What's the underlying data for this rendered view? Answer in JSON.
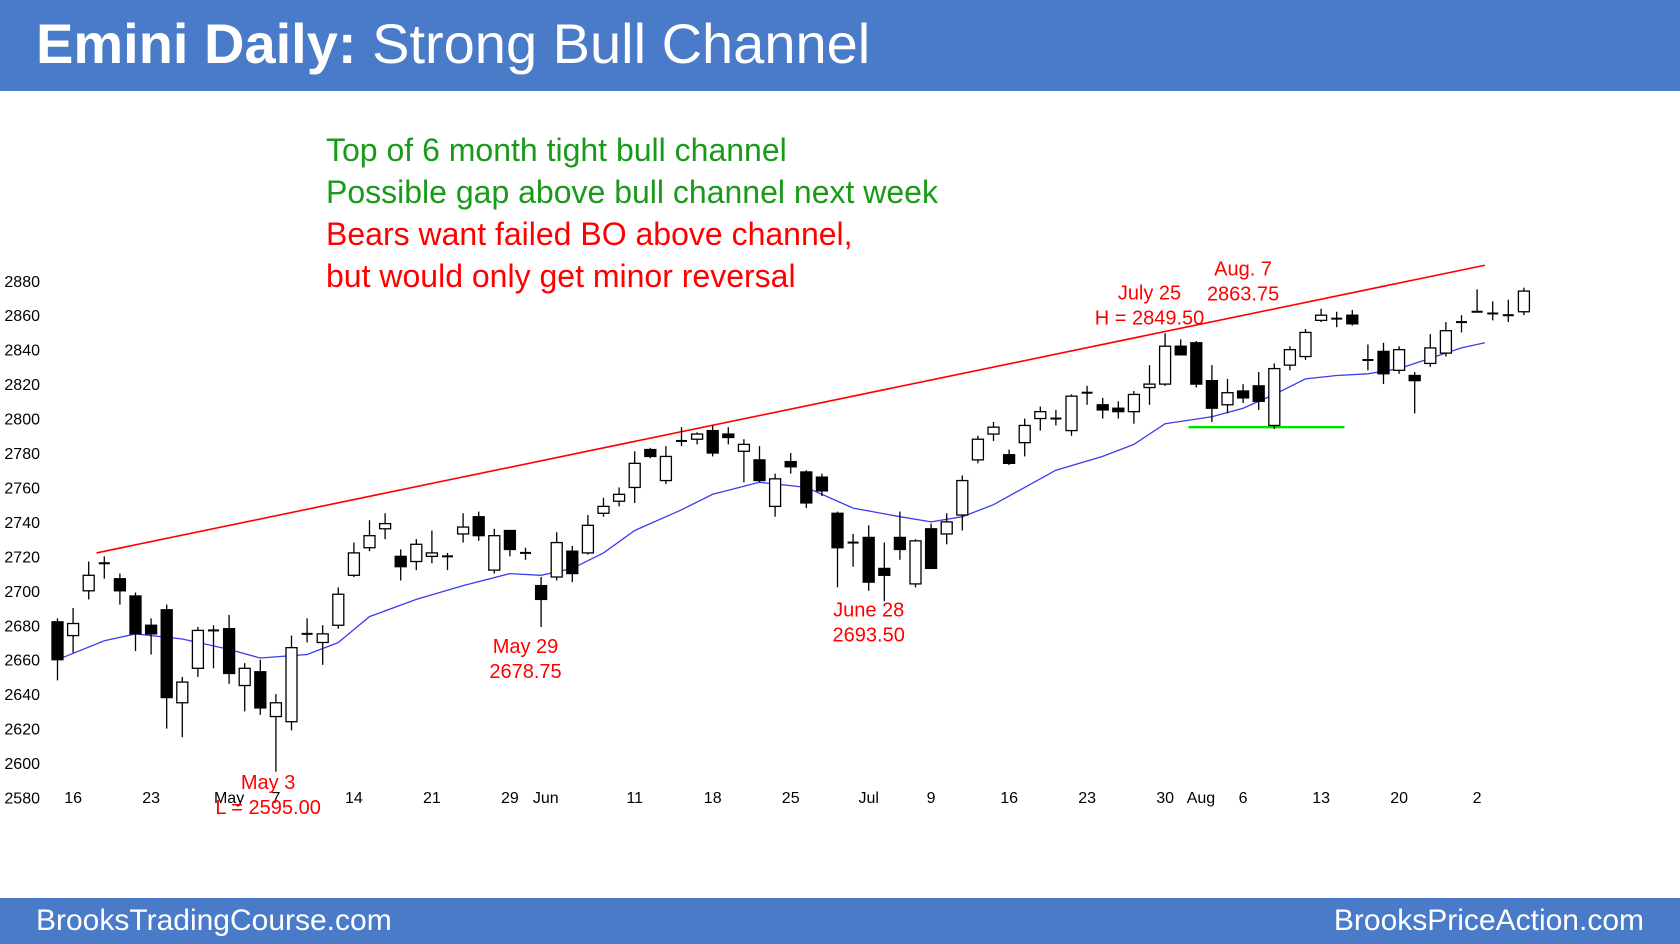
{
  "header": {
    "title_bold": "Emini Daily:",
    "title_rest": "Strong Bull Channel"
  },
  "footer": {
    "left_text": "BrooksTradingCourse.com",
    "right_text": "BrooksPriceAction.com"
  },
  "colors": {
    "header_bg": "#4a7bc8",
    "green_text": "#1a9a1a",
    "red_text": "#ff0000",
    "trendline": "#ff0000",
    "moving_average": "#3c3cf0",
    "support_line": "#00e000",
    "bull_body": "#ffffff",
    "bear_body": "#000000"
  },
  "chart_data": {
    "type": "candlestick",
    "title": "Emini Daily: Strong Bull Channel",
    "y_ticks": [
      2580,
      2600,
      2620,
      2640,
      2660,
      2680,
      2700,
      2720,
      2740,
      2760,
      2780,
      2800,
      2820,
      2840,
      2860,
      2880
    ],
    "ylim": [
      2568,
      2900
    ],
    "x_tick_labels": [
      {
        "bar": 1,
        "label": "16"
      },
      {
        "bar": 6,
        "label": "23"
      },
      {
        "bar": 11,
        "label": "May"
      },
      {
        "bar": 14,
        "label": "7"
      },
      {
        "bar": 19,
        "label": "14"
      },
      {
        "bar": 24,
        "label": "21"
      },
      {
        "bar": 29,
        "label": "29"
      },
      {
        "bar": 31.3,
        "label": "Jun"
      },
      {
        "bar": 37,
        "label": "11"
      },
      {
        "bar": 42,
        "label": "18"
      },
      {
        "bar": 47,
        "label": "25"
      },
      {
        "bar": 52,
        "label": "Jul"
      },
      {
        "bar": 56,
        "label": "9"
      },
      {
        "bar": 61,
        "label": "16"
      },
      {
        "bar": 66,
        "label": "23"
      },
      {
        "bar": 71,
        "label": "30"
      },
      {
        "bar": 73.3,
        "label": "Aug"
      },
      {
        "bar": 76,
        "label": "6"
      },
      {
        "bar": 81,
        "label": "13"
      },
      {
        "bar": 86,
        "label": "20"
      },
      {
        "bar": 91,
        "label": "2"
      }
    ],
    "candles": [
      {
        "open": 2682,
        "high": 2684,
        "low": 2648,
        "close": 2660
      },
      {
        "open": 2674,
        "high": 2690,
        "low": 2664,
        "close": 2681
      },
      {
        "open": 2700,
        "high": 2717,
        "low": 2695,
        "close": 2709
      },
      {
        "open": 2715,
        "high": 2720,
        "low": 2707,
        "close": 2716
      },
      {
        "open": 2707,
        "high": 2710,
        "low": 2692,
        "close": 2700
      },
      {
        "open": 2697,
        "high": 2699,
        "low": 2665,
        "close": 2675
      },
      {
        "open": 2680,
        "high": 2684,
        "low": 2663,
        "close": 2675
      },
      {
        "open": 2689,
        "high": 2692,
        "low": 2620,
        "close": 2638
      },
      {
        "open": 2635,
        "high": 2650,
        "low": 2615,
        "close": 2647
      },
      {
        "open": 2655,
        "high": 2679,
        "low": 2650,
        "close": 2677
      },
      {
        "open": 2677,
        "high": 2680,
        "low": 2655,
        "close": 2677
      },
      {
        "open": 2678,
        "high": 2686,
        "low": 2646,
        "close": 2652
      },
      {
        "open": 2645,
        "high": 2658,
        "low": 2630,
        "close": 2655
      },
      {
        "open": 2653,
        "high": 2660,
        "low": 2628,
        "close": 2632
      },
      {
        "open": 2627,
        "high": 2640,
        "low": 2595,
        "close": 2635
      },
      {
        "open": 2624,
        "high": 2674,
        "low": 2619,
        "close": 2667
      },
      {
        "open": 2675,
        "high": 2684,
        "low": 2670,
        "close": 2675
      },
      {
        "open": 2670,
        "high": 2680,
        "low": 2657,
        "close": 2675
      },
      {
        "open": 2680,
        "high": 2702,
        "low": 2678,
        "close": 2698
      },
      {
        "open": 2709,
        "high": 2728,
        "low": 2708,
        "close": 2722
      },
      {
        "open": 2725,
        "high": 2741,
        "low": 2723,
        "close": 2732
      },
      {
        "open": 2736,
        "high": 2745,
        "low": 2730,
        "close": 2739
      },
      {
        "open": 2720,
        "high": 2724,
        "low": 2706,
        "close": 2714
      },
      {
        "open": 2717,
        "high": 2730,
        "low": 2712,
        "close": 2727
      },
      {
        "open": 2720,
        "high": 2735,
        "low": 2716,
        "close": 2722
      },
      {
        "open": 2720,
        "high": 2722,
        "low": 2712,
        "close": 2719
      },
      {
        "open": 2733,
        "high": 2745,
        "low": 2728,
        "close": 2737
      },
      {
        "open": 2743,
        "high": 2746,
        "low": 2729,
        "close": 2732
      },
      {
        "open": 2712,
        "high": 2736,
        "low": 2710,
        "close": 2732
      },
      {
        "open": 2735,
        "high": 2735,
        "low": 2720,
        "close": 2724
      },
      {
        "open": 2722,
        "high": 2725,
        "low": 2718,
        "close": 2722
      },
      {
        "open": 2703,
        "high": 2708,
        "low": 2679,
        "close": 2695
      },
      {
        "open": 2708,
        "high": 2734,
        "low": 2706,
        "close": 2728
      },
      {
        "open": 2723,
        "high": 2726,
        "low": 2705,
        "close": 2710
      },
      {
        "open": 2722,
        "high": 2744,
        "low": 2721,
        "close": 2738
      },
      {
        "open": 2745,
        "high": 2754,
        "low": 2743,
        "close": 2749
      },
      {
        "open": 2752,
        "high": 2760,
        "low": 2749,
        "close": 2756
      },
      {
        "open": 2760,
        "high": 2781,
        "low": 2751,
        "close": 2774
      },
      {
        "open": 2782,
        "high": 2783,
        "low": 2777,
        "close": 2778
      },
      {
        "open": 2764,
        "high": 2784,
        "low": 2762,
        "close": 2778
      },
      {
        "open": 2786,
        "high": 2795,
        "low": 2784,
        "close": 2787
      },
      {
        "open": 2788,
        "high": 2792,
        "low": 2785,
        "close": 2791
      },
      {
        "open": 2793,
        "high": 2796,
        "low": 2778,
        "close": 2780
      },
      {
        "open": 2791,
        "high": 2795,
        "low": 2785,
        "close": 2789
      },
      {
        "open": 2781,
        "high": 2788,
        "low": 2763,
        "close": 2785
      },
      {
        "open": 2776,
        "high": 2784,
        "low": 2763,
        "close": 2764
      },
      {
        "open": 2749,
        "high": 2768,
        "low": 2743,
        "close": 2765
      },
      {
        "open": 2775,
        "high": 2780,
        "low": 2768,
        "close": 2772
      },
      {
        "open": 2769,
        "high": 2770,
        "low": 2748,
        "close": 2751
      },
      {
        "open": 2766,
        "high": 2768,
        "low": 2755,
        "close": 2758
      },
      {
        "open": 2745,
        "high": 2746,
        "low": 2702,
        "close": 2725
      },
      {
        "open": 2728,
        "high": 2733,
        "low": 2714,
        "close": 2728
      },
      {
        "open": 2731,
        "high": 2738,
        "low": 2700,
        "close": 2705
      },
      {
        "open": 2713,
        "high": 2728,
        "low": 2694,
        "close": 2709
      },
      {
        "open": 2731,
        "high": 2746,
        "low": 2718,
        "close": 2724
      },
      {
        "open": 2704,
        "high": 2730,
        "low": 2702,
        "close": 2729
      },
      {
        "open": 2736,
        "high": 2739,
        "low": 2713,
        "close": 2713
      },
      {
        "open": 2733,
        "high": 2745,
        "low": 2727,
        "close": 2740
      },
      {
        "open": 2744,
        "high": 2767,
        "low": 2735,
        "close": 2764
      },
      {
        "open": 2776,
        "high": 2790,
        "low": 2774,
        "close": 2788
      },
      {
        "open": 2791,
        "high": 2798,
        "low": 2787,
        "close": 2795
      },
      {
        "open": 2779,
        "high": 2782,
        "low": 2773,
        "close": 2774
      },
      {
        "open": 2786,
        "high": 2800,
        "low": 2778,
        "close": 2796
      },
      {
        "open": 2800,
        "high": 2807,
        "low": 2793,
        "close": 2804
      },
      {
        "open": 2800,
        "high": 2805,
        "low": 2796,
        "close": 2799
      },
      {
        "open": 2793,
        "high": 2814,
        "low": 2790,
        "close": 2813
      },
      {
        "open": 2814,
        "high": 2819,
        "low": 2808,
        "close": 2815
      },
      {
        "open": 2808,
        "high": 2812,
        "low": 2800,
        "close": 2805
      },
      {
        "open": 2806,
        "high": 2810,
        "low": 2800,
        "close": 2804
      },
      {
        "open": 2804,
        "high": 2816,
        "low": 2797,
        "close": 2814
      },
      {
        "open": 2818,
        "high": 2831,
        "low": 2808,
        "close": 2820
      },
      {
        "open": 2820,
        "high": 2849.5,
        "low": 2819,
        "close": 2842
      },
      {
        "open": 2842,
        "high": 2846,
        "low": 2838,
        "close": 2837
      },
      {
        "open": 2844,
        "high": 2845,
        "low": 2818,
        "close": 2820
      },
      {
        "open": 2822,
        "high": 2831,
        "low": 2798,
        "close": 2806
      },
      {
        "open": 2808,
        "high": 2823,
        "low": 2803,
        "close": 2815
      },
      {
        "open": 2816,
        "high": 2820,
        "low": 2809,
        "close": 2812
      },
      {
        "open": 2819,
        "high": 2827,
        "low": 2805,
        "close": 2810
      },
      {
        "open": 2796,
        "high": 2832,
        "low": 2794,
        "close": 2829
      },
      {
        "open": 2831,
        "high": 2842,
        "low": 2828,
        "close": 2840
      },
      {
        "open": 2836,
        "high": 2852,
        "low": 2834,
        "close": 2850
      },
      {
        "open": 2857,
        "high": 2863.75,
        "low": 2856,
        "close": 2860
      },
      {
        "open": 2857,
        "high": 2862,
        "low": 2853,
        "close": 2858
      },
      {
        "open": 2860,
        "high": 2863,
        "low": 2854,
        "close": 2855
      },
      {
        "open": 2834,
        "high": 2843,
        "low": 2828,
        "close": 2834
      },
      {
        "open": 2839,
        "high": 2844,
        "low": 2820,
        "close": 2826
      },
      {
        "open": 2828,
        "high": 2842,
        "low": 2826,
        "close": 2840
      },
      {
        "open": 2825,
        "high": 2827,
        "low": 2803,
        "close": 2822
      },
      {
        "open": 2832,
        "high": 2849,
        "low": 2830,
        "close": 2841
      },
      {
        "open": 2838,
        "high": 2856,
        "low": 2836,
        "close": 2851
      },
      {
        "open": 2855,
        "high": 2860,
        "low": 2850,
        "close": 2856
      },
      {
        "open": 2862,
        "high": 2875,
        "low": 2862,
        "close": 2862
      },
      {
        "open": 2861,
        "high": 2868,
        "low": 2857,
        "close": 2860
      },
      {
        "open": 2859,
        "high": 2869,
        "low": 2856,
        "close": 2860
      },
      {
        "open": 2862,
        "high": 2876,
        "low": 2860,
        "close": 2874
      }
    ],
    "moving_average": [
      {
        "bar": 0,
        "value": 2660
      },
      {
        "bar": 3,
        "value": 2671
      },
      {
        "bar": 5,
        "value": 2675
      },
      {
        "bar": 8,
        "value": 2672
      },
      {
        "bar": 11,
        "value": 2666
      },
      {
        "bar": 13,
        "value": 2661
      },
      {
        "bar": 16,
        "value": 2663
      },
      {
        "bar": 18,
        "value": 2670
      },
      {
        "bar": 20,
        "value": 2685
      },
      {
        "bar": 23,
        "value": 2695
      },
      {
        "bar": 26,
        "value": 2703
      },
      {
        "bar": 29,
        "value": 2710
      },
      {
        "bar": 31,
        "value": 2709
      },
      {
        "bar": 33,
        "value": 2713
      },
      {
        "bar": 35,
        "value": 2722
      },
      {
        "bar": 37,
        "value": 2735
      },
      {
        "bar": 40,
        "value": 2747
      },
      {
        "bar": 42,
        "value": 2756
      },
      {
        "bar": 45,
        "value": 2763
      },
      {
        "bar": 48,
        "value": 2760
      },
      {
        "bar": 51,
        "value": 2748
      },
      {
        "bar": 54,
        "value": 2743
      },
      {
        "bar": 56,
        "value": 2740
      },
      {
        "bar": 58,
        "value": 2743
      },
      {
        "bar": 60,
        "value": 2750
      },
      {
        "bar": 62,
        "value": 2760
      },
      {
        "bar": 64,
        "value": 2770
      },
      {
        "bar": 67,
        "value": 2778
      },
      {
        "bar": 69,
        "value": 2785
      },
      {
        "bar": 71,
        "value": 2797
      },
      {
        "bar": 74,
        "value": 2801
      },
      {
        "bar": 76,
        "value": 2806
      },
      {
        "bar": 78,
        "value": 2814
      },
      {
        "bar": 80,
        "value": 2823
      },
      {
        "bar": 82,
        "value": 2825
      },
      {
        "bar": 84,
        "value": 2826
      },
      {
        "bar": 86,
        "value": 2829
      },
      {
        "bar": 88,
        "value": 2835
      },
      {
        "bar": 90,
        "value": 2841
      },
      {
        "bar": 91.5,
        "value": 2844
      }
    ],
    "trendline": {
      "start_bar": 2.5,
      "start_value": 2722,
      "end_bar": 91.5,
      "end_value": 2889
    },
    "support_line": {
      "start_bar": 72.5,
      "end_bar": 82.5,
      "value": 2795
    },
    "annotations": {
      "green": [
        "Top of 6 month tight bull channel",
        "Possible gap above bull channel next week"
      ],
      "red": [
        "Bears want failed BO above channel,",
        "but would only get minor reversal"
      ],
      "labels": [
        {
          "bar": 13.5,
          "value": 2585,
          "lines": [
            "May 3",
            "L = 2595.00"
          ]
        },
        {
          "bar": 30,
          "value": 2664,
          "lines": [
            "May 29",
            "2678.75"
          ]
        },
        {
          "bar": 52,
          "value": 2685,
          "lines": [
            "June 28",
            "2693.50"
          ]
        },
        {
          "bar": 70,
          "value": 2869,
          "lines": [
            "July 25",
            "H = 2849.50"
          ]
        },
        {
          "bar": 76,
          "value": 2883,
          "lines": [
            "Aug. 7",
            "2863.75"
          ]
        }
      ]
    }
  }
}
